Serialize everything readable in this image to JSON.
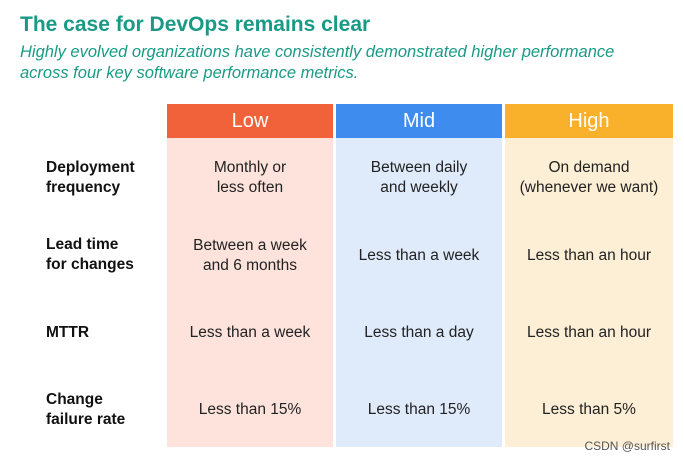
{
  "title": "The case for DevOps remains clear",
  "subtitle": "Highly evolved organizations have consistently demonstrated higher performance across four key software performance metrics.",
  "columns": {
    "low": "Low",
    "mid": "Mid",
    "high": "High"
  },
  "colors": {
    "low_header": "#f2623a",
    "mid_header": "#3f8cef",
    "high_header": "#f9b12b",
    "low_bg": "#fde3db",
    "mid_bg": "#dfeafb",
    "high_bg": "#fdefd6",
    "accent_text": "#1a9a86"
  },
  "rows": [
    {
      "label": "Deployment\nfrequency",
      "low": "Monthly or\nless often",
      "mid": "Between daily\nand weekly",
      "high": "On demand\n(whenever we want)"
    },
    {
      "label": "Lead time\nfor changes",
      "low": "Between a week\nand 6 months",
      "mid": "Less than a week",
      "high": "Less than an hour"
    },
    {
      "label": "MTTR",
      "low": "Less than a week",
      "mid": "Less than a day",
      "high": "Less than an hour"
    },
    {
      "label": "Change\nfailure rate",
      "low": "Less than 15%",
      "mid": "Less than 15%",
      "high": "Less than 5%"
    }
  ],
  "watermark": "CSDN @surfirst"
}
